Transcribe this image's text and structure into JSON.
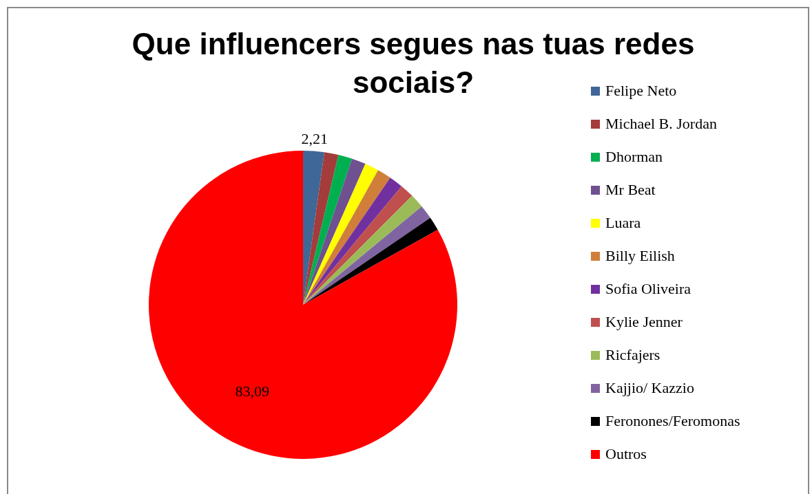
{
  "chart_data": {
    "type": "pie",
    "title": "Que influencers segues nas tuas redes sociais?",
    "categories": [
      "Felipe Neto",
      "Michael B. Jordan",
      "Dhorman",
      "Mr Beat",
      "Luara",
      "Billy Eilish",
      "Sofia Oliveira",
      "Kylie Jenner",
      "Ricfajers",
      "Kajjio/ Kazzio",
      "Feronones/Feromonas",
      "Outros"
    ],
    "values": [
      2.21,
      1.47,
      1.47,
      1.47,
      1.47,
      1.47,
      1.47,
      1.47,
      1.47,
      1.47,
      1.47,
      83.09
    ],
    "value_labels": [
      "2,21",
      null,
      null,
      null,
      null,
      null,
      null,
      null,
      null,
      null,
      null,
      "83,09"
    ],
    "colors": [
      "#3f6797",
      "#a33c3a",
      "#00b050",
      "#6f5090",
      "#ffff00",
      "#d07f3a",
      "#7030a0",
      "#c0504d",
      "#9bbb59",
      "#8064a2",
      "#000000",
      "#ff0000"
    ],
    "legend": "right"
  }
}
